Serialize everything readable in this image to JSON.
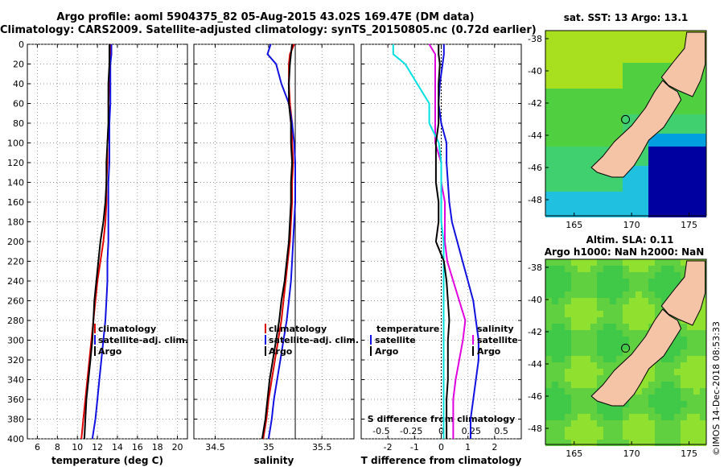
{
  "title_line1": "Argo profile: aoml 5904375_82 05-Aug-2015 43.02S 169.47E (DM data)",
  "title_line2": "Climatology: CARS2009. Satellite-adjusted climatology: synTS_20150805.nc (0.72d earlier)",
  "credit": "©IMOS 14-Dec-2018 08:53:33",
  "colors": {
    "climatology": "#e00000",
    "satellite": "#1010e0",
    "argo": "#000000",
    "s_diff": "#00e0e0",
    "t_diff_sat": "#e000e0"
  },
  "chart_data": [
    {
      "type": "line",
      "id": "temperature",
      "xlabel": "temperature (deg C)",
      "ylabel": "",
      "xlim": [
        5,
        21
      ],
      "ylim": [
        400,
        0
      ],
      "xticks": [
        "6",
        "8",
        "10",
        "12",
        "14",
        "16",
        "18",
        "20"
      ],
      "yticks": [
        "0",
        "20",
        "40",
        "60",
        "80",
        "100",
        "120",
        "140",
        "160",
        "180",
        "200",
        "220",
        "240",
        "260",
        "280",
        "300",
        "320",
        "340",
        "360",
        "380",
        "400"
      ],
      "grid": true,
      "legend": {
        "placement": "center-right",
        "entries": [
          "climatology",
          "satellite-adj. clim.",
          "Argo"
        ]
      },
      "depth": [
        0,
        10,
        20,
        40,
        60,
        80,
        100,
        120,
        140,
        160,
        180,
        200,
        220,
        240,
        260,
        280,
        300,
        320,
        340,
        360,
        380,
        400
      ],
      "series": [
        {
          "name": "climatology",
          "values": [
            13.3,
            13.3,
            13.2,
            13.2,
            13.1,
            13.2,
            13.0,
            13.0,
            12.9,
            12.9,
            12.8,
            12.6,
            12.3,
            12.0,
            11.8,
            11.6,
            11.4,
            11.2,
            11.0,
            10.8,
            10.6,
            10.4
          ]
        },
        {
          "name": "satellite-adj. clim.",
          "values": [
            13.4,
            13.4,
            13.3,
            13.3,
            13.3,
            13.2,
            13.2,
            13.2,
            13.1,
            13.1,
            13.1,
            13.1,
            13.0,
            13.0,
            12.9,
            12.8,
            12.6,
            12.4,
            12.2,
            12.0,
            11.8,
            11.5
          ]
        },
        {
          "name": "Argo",
          "values": [
            13.2,
            13.2,
            13.2,
            13.1,
            13.1,
            13.1,
            13.0,
            12.9,
            12.9,
            12.8,
            12.6,
            12.3,
            12.1,
            11.9,
            11.7,
            11.6,
            11.5,
            11.3,
            11.1,
            10.9,
            10.8,
            10.7
          ]
        }
      ]
    },
    {
      "type": "line",
      "id": "salinity",
      "xlabel": "salinity",
      "ylabel": "",
      "xlim": [
        34.3,
        35.8
      ],
      "ylim": [
        400,
        0
      ],
      "xticks": [
        "34.5",
        "35",
        "35.5"
      ],
      "grid": true,
      "legend": {
        "placement": "center-right",
        "entries": [
          "climatology",
          "satellite-adj. clim.",
          "Argo"
        ]
      },
      "depth": [
        0,
        10,
        20,
        40,
        60,
        80,
        100,
        120,
        140,
        160,
        180,
        200,
        220,
        240,
        260,
        280,
        300,
        320,
        340,
        360,
        380,
        400
      ],
      "series": [
        {
          "name": "climatology",
          "values": [
            35.24,
            35.2,
            35.19,
            35.19,
            35.2,
            35.22,
            35.22,
            35.23,
            35.22,
            35.22,
            35.21,
            35.2,
            35.18,
            35.16,
            35.14,
            35.12,
            35.09,
            35.06,
            35.03,
            35.0,
            34.98,
            34.95
          ]
        },
        {
          "name": "satellite-adj. clim.",
          "values": [
            35.02,
            34.99,
            35.07,
            35.12,
            35.19,
            35.22,
            35.24,
            35.25,
            35.25,
            35.25,
            35.24,
            35.23,
            35.22,
            35.21,
            35.19,
            35.17,
            35.14,
            35.11,
            35.08,
            35.05,
            35.03,
            35.0
          ]
        },
        {
          "name": "Argo",
          "values": [
            35.22,
            35.21,
            35.2,
            35.19,
            35.19,
            35.21,
            35.21,
            35.22,
            35.21,
            35.21,
            35.2,
            35.19,
            35.17,
            35.15,
            35.12,
            35.1,
            35.07,
            35.04,
            35.01,
            34.99,
            34.97,
            34.94
          ]
        }
      ]
    },
    {
      "type": "line",
      "id": "differences",
      "xlabel": "T difference from climatology",
      "xlabel_top": "S difference from climatology",
      "xlim": [
        -3,
        3
      ],
      "ylim": [
        400,
        0
      ],
      "xticks": [
        "-2",
        "-1",
        "0",
        "1",
        "2"
      ],
      "xticks_top": [
        "-0.5",
        "-0.25",
        "0",
        "0.25",
        "0.5"
      ],
      "grid": true,
      "legend": {
        "placement": "center",
        "temperature_label": "temperature",
        "salinity_label": "salinity",
        "entries": [
          "satellite",
          "Argo"
        ]
      },
      "depth": [
        0,
        10,
        20,
        40,
        60,
        80,
        100,
        120,
        140,
        160,
        180,
        200,
        220,
        240,
        260,
        280,
        300,
        320,
        340,
        360,
        380,
        400
      ],
      "series": [
        {
          "name": "T satellite",
          "values": [
            0.1,
            0.1,
            0.05,
            -0.05,
            -0.1,
            0.0,
            0.2,
            0.2,
            0.25,
            0.3,
            0.4,
            0.6,
            0.8,
            1.0,
            1.2,
            1.3,
            1.4,
            1.4,
            1.3,
            1.2,
            1.1,
            1.1
          ]
        },
        {
          "name": "T Argo",
          "values": [
            -0.1,
            -0.1,
            -0.05,
            -0.1,
            -0.1,
            -0.1,
            -0.2,
            -0.2,
            -0.2,
            -0.1,
            -0.1,
            -0.2,
            0.1,
            0.2,
            0.25,
            0.3,
            0.25,
            0.25,
            0.25,
            0.2,
            0.2,
            0.2
          ]
        },
        {
          "name": "S satellite",
          "values": [
            -0.4,
            -0.4,
            -0.3,
            -0.2,
            -0.1,
            -0.1,
            -0.02,
            0.0,
            0.0,
            0.0,
            0.0,
            0.02,
            0.02,
            0.02,
            0.02,
            0.02,
            0.02,
            0.02,
            0.02,
            0.02,
            0.02,
            0.02
          ]
        },
        {
          "name": "S Argo",
          "values": [
            -0.1,
            -0.05,
            -0.05,
            -0.05,
            -0.05,
            -0.05,
            -0.05,
            0.0,
            0.0,
            0.03,
            0.03,
            0.03,
            0.05,
            0.1,
            0.15,
            0.2,
            0.18,
            0.15,
            0.12,
            0.1,
            0.1,
            0.1
          ]
        }
      ]
    },
    {
      "type": "heatmap",
      "id": "sst_map",
      "title": "sat. SST: 13 Argo: 13.1",
      "xlim": [
        162.5,
        176.5
      ],
      "ylim": [
        -49,
        -37.5
      ],
      "xticks": [
        "165",
        "170",
        "175"
      ],
      "yticks": [
        "-38",
        "-40",
        "-42",
        "-44",
        "-46",
        "-48"
      ],
      "argo_position": [
        169.47,
        -43.02
      ]
    },
    {
      "type": "heatmap",
      "id": "sla_map",
      "title": "Altim. SLA: 0.11",
      "subtitle": "Argo h1000: NaN h2000: NaN",
      "xlim": [
        162.5,
        176.5
      ],
      "ylim": [
        -49,
        -37.5
      ],
      "xticks": [
        "165",
        "170",
        "175"
      ],
      "yticks": [
        "-38",
        "-40",
        "-42",
        "-44",
        "-46",
        "-48"
      ],
      "argo_position": [
        169.47,
        -43.02
      ]
    }
  ]
}
